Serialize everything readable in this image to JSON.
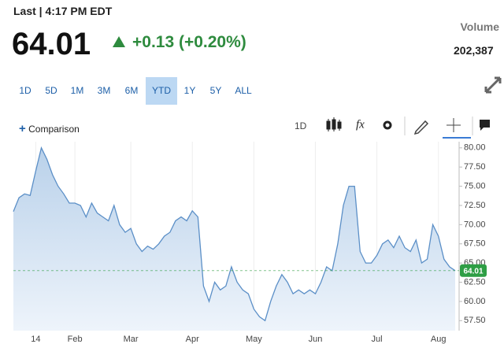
{
  "header": {
    "status": "Last | 4:17 PM EDT",
    "price": "64.01",
    "change": "+0.13 (+0.20%)",
    "volume_label": "Volume",
    "volume": "202,387"
  },
  "ranges": {
    "items": [
      "1D",
      "5D",
      "1M",
      "3M",
      "6M",
      "YTD",
      "1Y",
      "5Y",
      "ALL"
    ],
    "selected_index": 5
  },
  "toolbar": {
    "comparison": "Comparison",
    "interval": "1D",
    "function_icon": "fx"
  },
  "chart_data": {
    "type": "area",
    "color": "#5b8fc7",
    "current_value": 64.01,
    "current_color": "#2e9e45",
    "categories": [
      null,
      null,
      null,
      null,
      "14",
      null,
      null,
      null,
      null,
      null,
      null,
      "Feb",
      null,
      null,
      null,
      null,
      null,
      null,
      null,
      null,
      null,
      "Mar",
      null,
      null,
      null,
      null,
      null,
      null,
      null,
      null,
      null,
      null,
      "Apr",
      null,
      null,
      null,
      null,
      null,
      null,
      null,
      null,
      null,
      null,
      "May",
      null,
      null,
      null,
      null,
      null,
      null,
      null,
      null,
      null,
      null,
      "Jun",
      null,
      null,
      null,
      null,
      null,
      null,
      null,
      null,
      null,
      null,
      "Jul",
      null,
      null,
      null,
      null,
      null,
      null,
      null,
      null,
      null,
      null,
      "Aug",
      null,
      null,
      null
    ],
    "values": [
      71.7,
      73.5,
      74.0,
      73.8,
      77.0,
      80.0,
      78.5,
      76.5,
      75.0,
      74.0,
      72.8,
      72.8,
      72.5,
      71.0,
      72.8,
      71.5,
      71.0,
      70.5,
      72.5,
      70.0,
      69.0,
      69.5,
      67.5,
      66.5,
      67.2,
      66.8,
      67.5,
      68.5,
      69.0,
      70.5,
      71.0,
      70.5,
      71.8,
      71.0,
      62.0,
      60.0,
      62.5,
      61.5,
      62.0,
      64.5,
      62.5,
      61.5,
      61.0,
      59.0,
      58.0,
      57.5,
      60.0,
      62.0,
      63.5,
      62.5,
      61.0,
      61.5,
      61.0,
      61.5,
      61.0,
      62.5,
      64.5,
      64.0,
      67.5,
      72.5,
      75.0,
      75.0,
      66.5,
      65.0,
      65.0,
      66.0,
      67.5,
      68.0,
      67.0,
      68.5,
      67.0,
      66.5,
      68.0,
      65.0,
      65.5,
      70.0,
      68.5,
      65.5,
      64.5,
      64.01
    ],
    "ylim": [
      56.2,
      80.8
    ],
    "yticks": [
      {
        "value": 80,
        "label": "80.00"
      },
      {
        "value": 77.5,
        "label": "77.50"
      },
      {
        "value": 75,
        "label": "75.00"
      },
      {
        "value": 72.5,
        "label": "72.50"
      },
      {
        "value": 70,
        "label": "70.00"
      },
      {
        "value": 67.5,
        "label": "67.50"
      },
      {
        "value": 65,
        "label": "65.00"
      },
      {
        "value": 62.5,
        "label": "62.50"
      },
      {
        "value": 60,
        "label": "60.00"
      },
      {
        "value": 57.5,
        "label": "57.50"
      }
    ],
    "grid": true
  }
}
